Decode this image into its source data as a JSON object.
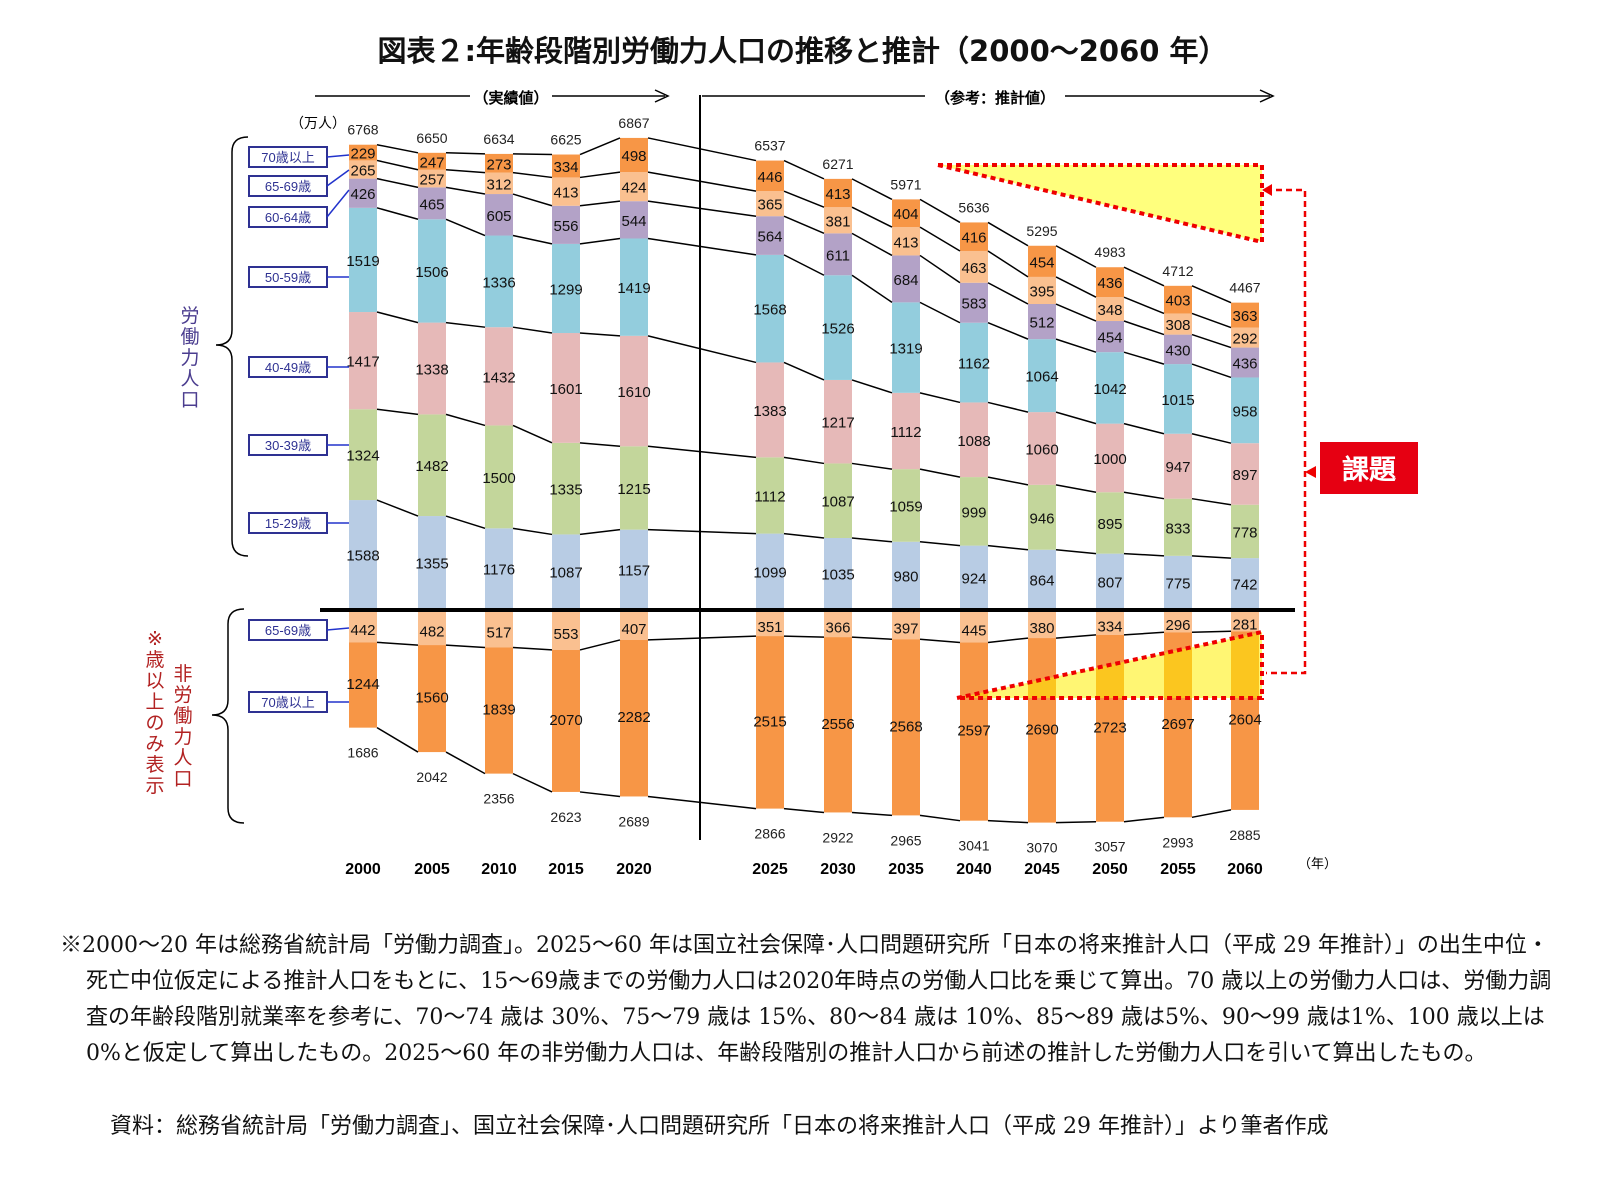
{
  "title": "図表２:年齢段階別労働力人口の推移と推計（2000〜2060 年）",
  "chart_data": {
    "type": "bar",
    "stacked": true,
    "unit": "（万人）",
    "year_unit": "（年）",
    "categories": [
      "2000",
      "2005",
      "2010",
      "2015",
      "2020",
      "2025",
      "2030",
      "2035",
      "2040",
      "2045",
      "2050",
      "2055",
      "2060"
    ],
    "period_labels": {
      "actual": "（実績値）",
      "projected": "（参考：推計値）"
    },
    "labor_group_label": "労働力人口",
    "nonlabor_group_label": "非労働力人口",
    "nonlabor_note": "※65歳以上のみ表示",
    "issue_label": "課題",
    "labor_series": [
      {
        "name": "15-29歳",
        "color": "#b8cce4",
        "values": [
          1588,
          1355,
          1176,
          1087,
          1157,
          1099,
          1035,
          980,
          924,
          864,
          807,
          775,
          742
        ]
      },
      {
        "name": "30-39歳",
        "color": "#c3d69b",
        "values": [
          1324,
          1482,
          1500,
          1335,
          1215,
          1112,
          1087,
          1059,
          999,
          946,
          895,
          833,
          778
        ]
      },
      {
        "name": "40-49歳",
        "color": "#e6b9b8",
        "values": [
          1417,
          1338,
          1432,
          1601,
          1610,
          1383,
          1217,
          1112,
          1088,
          1060,
          1000,
          947,
          897
        ]
      },
      {
        "name": "50-59歳",
        "color": "#93cddd",
        "values": [
          1519,
          1506,
          1336,
          1299,
          1419,
          1568,
          1526,
          1319,
          1162,
          1064,
          1042,
          1015,
          958
        ]
      },
      {
        "name": "60-64歳",
        "color": "#b3a2c7",
        "values": [
          426,
          465,
          605,
          556,
          544,
          564,
          611,
          684,
          583,
          512,
          454,
          430,
          436
        ]
      },
      {
        "name": "65-69歳",
        "color": "#fac090",
        "values": [
          265,
          257,
          312,
          413,
          424,
          365,
          381,
          413,
          463,
          395,
          348,
          308,
          292
        ]
      },
      {
        "name": "70歳以上",
        "color": "#f79646",
        "values": [
          229,
          247,
          273,
          334,
          498,
          446,
          413,
          404,
          416,
          454,
          436,
          403,
          363
        ]
      }
    ],
    "labor_totals": [
      6768,
      6650,
      6634,
      6625,
      6867,
      6537,
      6271,
      5971,
      5636,
      5295,
      4983,
      4712,
      4467
    ],
    "nonlabor_series": [
      {
        "name": "65-69歳",
        "color": "#fac090",
        "values": [
          442,
          482,
          517,
          553,
          407,
          351,
          366,
          397,
          445,
          380,
          334,
          296,
          281
        ]
      },
      {
        "name": "70歳以上",
        "color": "#f79646",
        "values": [
          1244,
          1560,
          1839,
          2070,
          2282,
          2515,
          2556,
          2568,
          2597,
          2690,
          2723,
          2697,
          2604
        ]
      }
    ],
    "nonlabor_totals": [
      1686,
      2042,
      2356,
      2623,
      2689,
      2866,
      2922,
      2965,
      3041,
      3070,
      3057,
      2993,
      2885
    ]
  },
  "notes": [
    "※2000〜20 年は総務省統計局「労働力調査」。2025〜60 年は国立社会保障･人口問題研究所「日本の将来推計人口（平成 29 年推計）」の出生中位・死亡中位仮定による推計人口をもとに、15〜69歳までの労働力人口は2020年時点の労働人口比を乗じて算出。70 歳以上の労働力人口は、労働力調査の年齢段階別就業率を参考に、70〜74 歳は 30%、75〜79 歳は 15%、80〜84 歳は 10%、85〜89 歳は5%、90〜99 歳は1%、100 歳以上は 0%と仮定して算出したもの。2025〜60 年の非労働力人口は、年齢段階別の推計人口から前述の推計した労働力人口を引いて算出したもの。"
  ],
  "source": "資料：総務省統計局「労働力調査」、国立社会保障･人口問題研究所「日本の将来推計人口（平成 29 年推計）」より筆者作成"
}
